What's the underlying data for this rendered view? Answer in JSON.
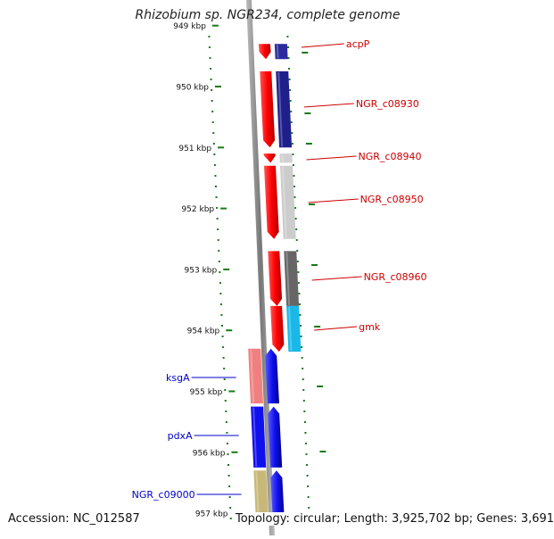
{
  "title": "Rhizobium sp. NGR234, complete genome",
  "footer": {
    "accession": "Accession: NC_012587",
    "summary": "Topology: circular; Length: 3,925,702 bp; Genes: 3,691"
  },
  "ticks": [
    {
      "label": "949 kbp",
      "kbp": 949
    },
    {
      "label": "950 kbp",
      "kbp": 950
    },
    {
      "label": "951 kbp",
      "kbp": 951
    },
    {
      "label": "952 kbp",
      "kbp": 952
    },
    {
      "label": "953 kbp",
      "kbp": 953
    },
    {
      "label": "954 kbp",
      "kbp": 954
    },
    {
      "label": "955 kbp",
      "kbp": 955
    },
    {
      "label": "956 kbp",
      "kbp": 956
    },
    {
      "label": "957 kbp",
      "kbp": 957
    }
  ],
  "genes_forward": [
    {
      "name": "acpP",
      "start": 949.3,
      "end": 949.55,
      "strand": "+",
      "color": "#2b2b9e",
      "protein_color": "#e41a1c"
    },
    {
      "name": "NGR_c08930",
      "start": 949.75,
      "end": 951.0,
      "strand": "+",
      "color": "#1f1f8c",
      "protein_color": "#e41a1c"
    },
    {
      "name": "NGR_c08940",
      "start": 951.1,
      "end": 951.25,
      "strand": "+",
      "color": "#d0d0d0",
      "protein_color": "#e41a1c"
    },
    {
      "name": "NGR_c08950",
      "start": 951.3,
      "end": 952.5,
      "strand": "+",
      "color": "#cccccc",
      "protein_color": "#e41a1c"
    },
    {
      "name": "NGR_c08960",
      "start": 952.7,
      "end": 953.6,
      "strand": "+",
      "color": "#666666",
      "protein_color": "#e41a1c"
    },
    {
      "name": "gmk",
      "start": 953.6,
      "end": 954.35,
      "strand": "+",
      "color": "#1ab8e8",
      "protein_color": "#e41a1c"
    }
  ],
  "genes_reverse": [
    {
      "name": "ksgA",
      "start": 954.3,
      "end": 955.2,
      "strand": "-",
      "color": "#f08080",
      "protein_color": "#1010e0"
    },
    {
      "name": "pdxA",
      "start": 955.25,
      "end": 956.25,
      "strand": "-",
      "color": "#1010ee",
      "protein_color": "#1010e0"
    },
    {
      "name": "NGR_c09000",
      "start": 956.3,
      "end": 957.2,
      "strand": "-",
      "color": "#c8b878",
      "protein_color": "#1010e0"
    }
  ],
  "colors": {
    "forward_label": "#cc0000",
    "reverse_label": "#0000cc",
    "tick": "#1a7a1a",
    "backbone": "#888888"
  }
}
